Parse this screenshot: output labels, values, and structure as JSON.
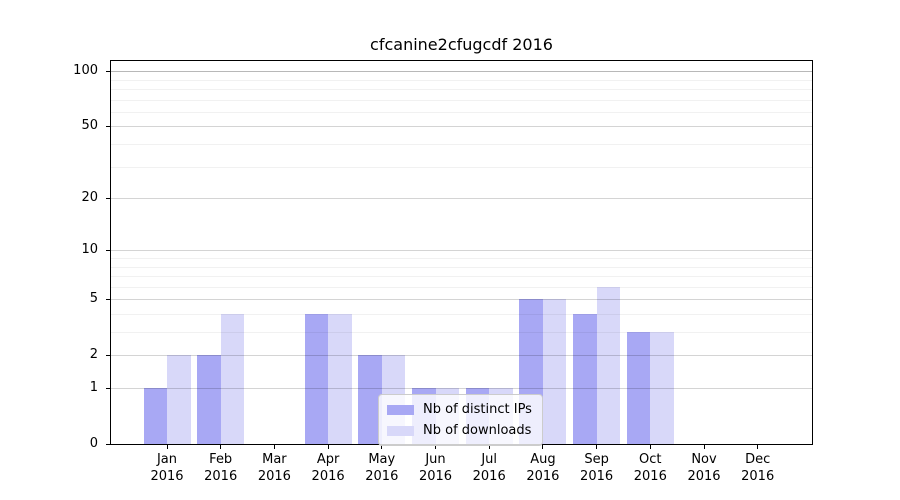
{
  "title": "cfcanine2cfugcdf 2016",
  "chart_data": {
    "type": "bar",
    "title": "cfcanine2cfugcdf 2016",
    "categories": [
      "Jan",
      "Feb",
      "Mar",
      "Apr",
      "May",
      "Jun",
      "Jul",
      "Aug",
      "Sep",
      "Oct",
      "Nov",
      "Dec"
    ],
    "year_label": "2016",
    "series": [
      {
        "name": "Nb of distinct IPs",
        "color": "#a8a8f4",
        "values": [
          1,
          2,
          0,
          4,
          2,
          1,
          1,
          5,
          4,
          3,
          0,
          0
        ]
      },
      {
        "name": "Nb of downloads",
        "color": "#d8d8f9",
        "values": [
          2,
          4,
          0,
          4,
          2,
          1,
          1,
          5,
          6,
          3,
          0,
          0
        ]
      }
    ],
    "yscale": "log1p",
    "ylim": [
      0,
      115
    ],
    "y_ticks": [
      0,
      1,
      2,
      5,
      10,
      20,
      50,
      100
    ],
    "y_minor_gridlines": [
      3,
      4,
      6,
      7,
      8,
      9,
      30,
      40,
      60,
      70,
      80,
      90
    ],
    "grid": "on",
    "legend_position": "lower center"
  }
}
